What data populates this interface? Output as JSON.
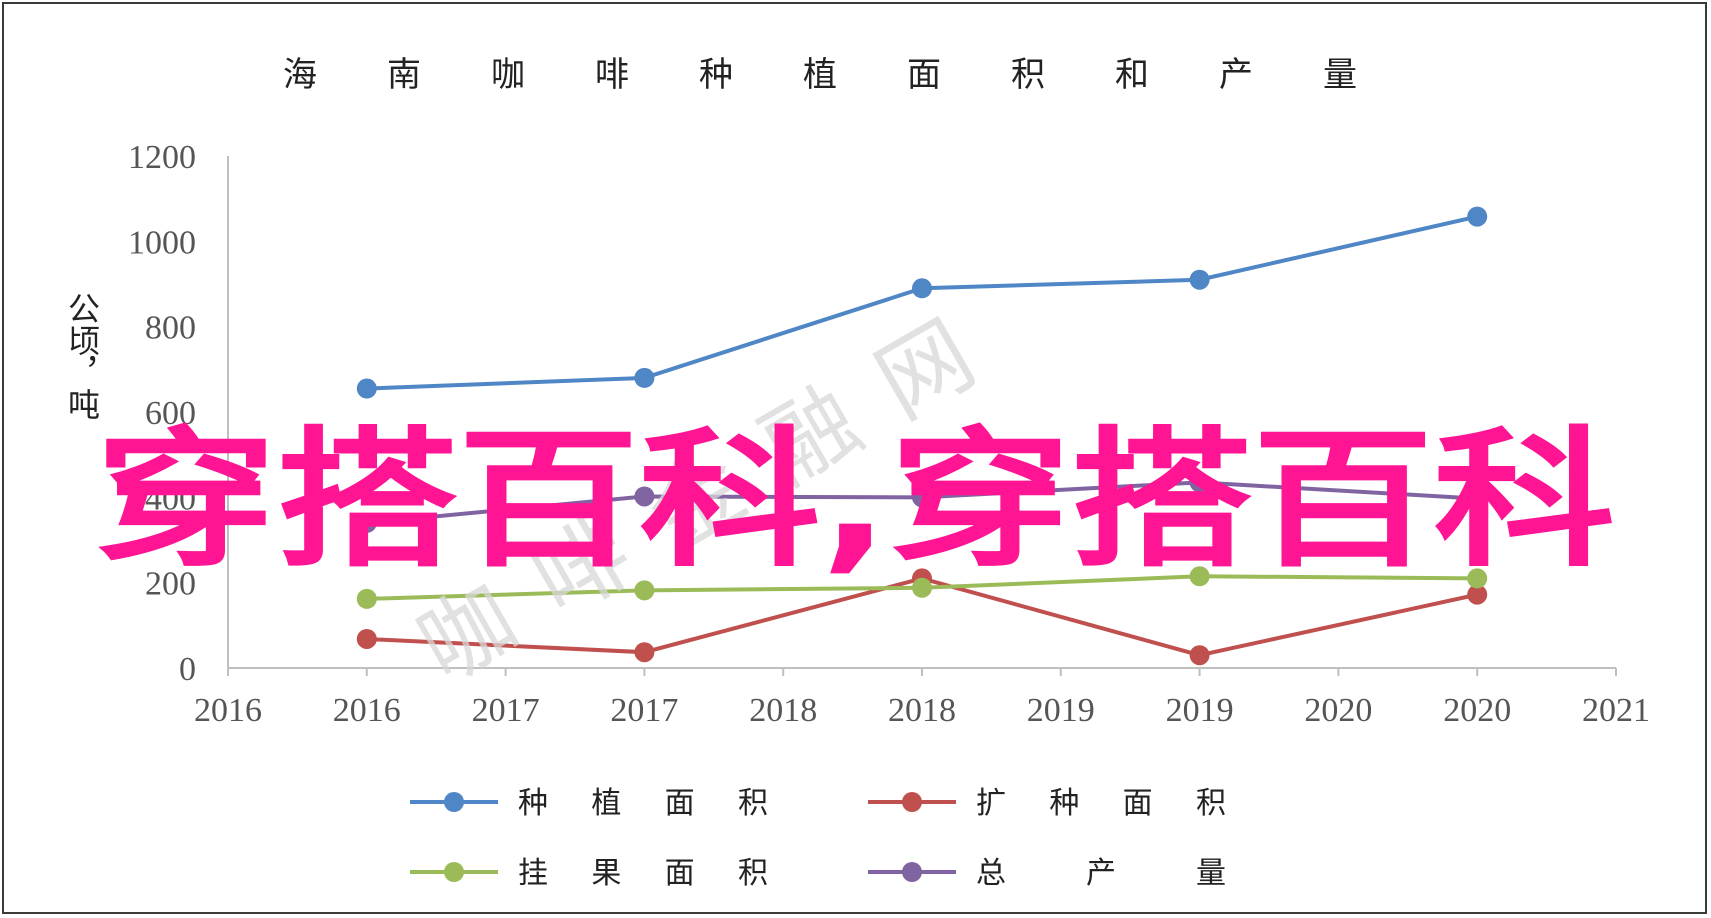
{
  "chart_data": {
    "type": "line",
    "title": "海南咖啡种植面积和产量",
    "ylabel": "公顷，吨",
    "xlabel": "",
    "ylim": [
      0,
      1200
    ],
    "yticks": [
      0,
      200,
      400,
      600,
      800,
      1000,
      1200
    ],
    "xaxis_range": [
      2016,
      2021
    ],
    "xtick_labels": [
      "2016",
      "2016",
      "2017",
      "2017",
      "2018",
      "2018",
      "2019",
      "2019",
      "2020",
      "2020",
      "2021"
    ],
    "categories": [
      "2016",
      "2017",
      "2018",
      "2019",
      "2020"
    ],
    "grid": false,
    "legend_position": "bottom",
    "series": [
      {
        "name": "种植面积",
        "color": "#4f86c6",
        "values": [
          655,
          680,
          890,
          910,
          1058
        ]
      },
      {
        "name": "扩种面积",
        "color": "#c0504d",
        "values": [
          68,
          37,
          210,
          30,
          172
        ]
      },
      {
        "name": "挂果面积",
        "color": "#9bbb59",
        "values": [
          162,
          182,
          188,
          215,
          210
        ]
      },
      {
        "name": "总产量",
        "color": "#8064a2",
        "values": [
          340,
          402,
          400,
          435,
          397
        ]
      }
    ]
  },
  "watermark": {
    "main_text": "穿搭百科,穿搭百科",
    "main_color": "#ff1493",
    "faint_text": "咖啡金融网",
    "faint_color": "#d8d8d8"
  }
}
